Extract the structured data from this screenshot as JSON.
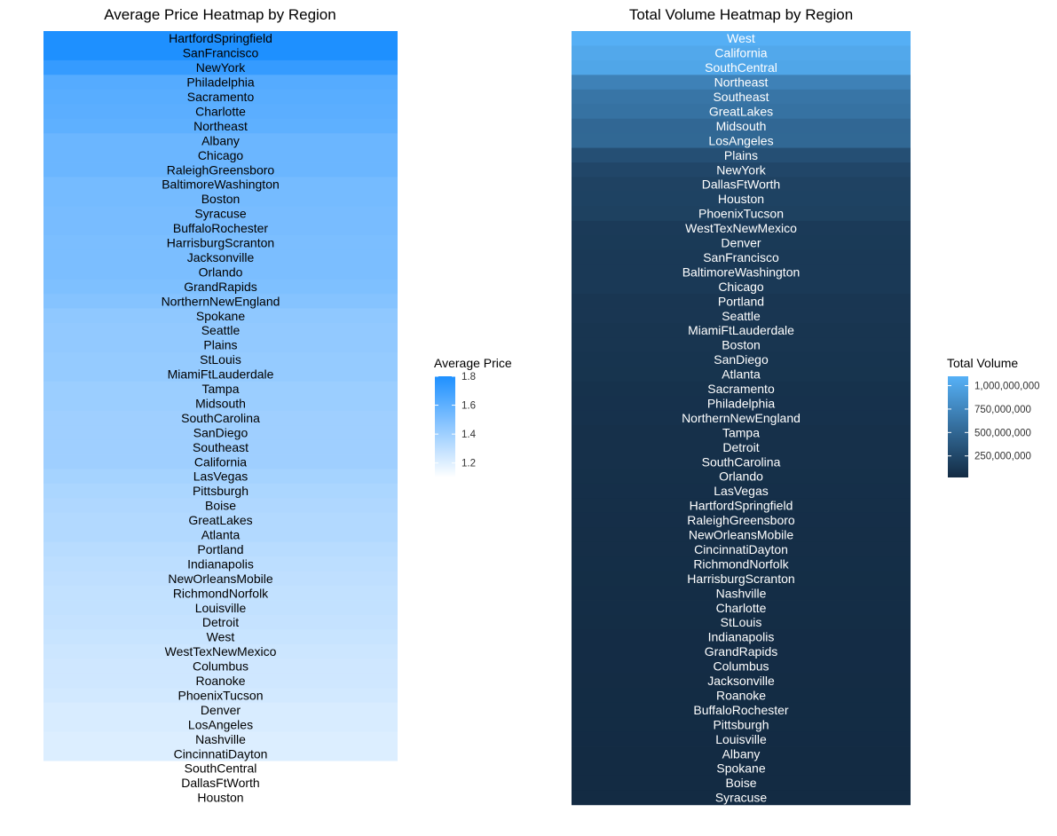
{
  "colors": {
    "price_low": "#ffffff",
    "price_high": "#1e90ff",
    "volume_low": "#132b43",
    "volume_high": "#56b1f7",
    "price_label": "#000000",
    "volume_label": "#ffffff"
  },
  "chart_data": [
    {
      "type": "heatmap",
      "title": "Average Price Heatmap by Region",
      "xlabel": "",
      "ylabel": "",
      "grid": false,
      "legend": {
        "title": "Average Price",
        "position": "right",
        "ticks": [
          1.2,
          1.4,
          1.6,
          1.8
        ],
        "tick_labels": [
          "1.2",
          "1.4",
          "1.6",
          "1.8"
        ],
        "range": [
          1.1,
          1.8
        ]
      },
      "categories": [
        "HartfordSpringfield",
        "SanFrancisco",
        "NewYork",
        "Philadelphia",
        "Sacramento",
        "Charlotte",
        "Northeast",
        "Albany",
        "Chicago",
        "RaleighGreensboro",
        "BaltimoreWashington",
        "Boston",
        "Syracuse",
        "BuffaloRochester",
        "HarrisburgScranton",
        "Jacksonville",
        "Orlando",
        "GrandRapids",
        "NorthernNewEngland",
        "Spokane",
        "Seattle",
        "Plains",
        "StLouis",
        "MiamiFtLauderdale",
        "Tampa",
        "Midsouth",
        "SouthCarolina",
        "SanDiego",
        "Southeast",
        "California",
        "LasVegas",
        "Pittsburgh",
        "Boise",
        "GreatLakes",
        "Atlanta",
        "Portland",
        "Indianapolis",
        "NewOrleansMobile",
        "RichmondNorfolk",
        "Louisville",
        "Detroit",
        "West",
        "WestTexNewMexico",
        "Columbus",
        "Roanoke",
        "PhoenixTucson",
        "Denver",
        "LosAngeles",
        "Nashville",
        "CincinnatiDayton",
        "SouthCentral",
        "DallasFtWorth",
        "Houston"
      ],
      "values": [
        1.82,
        1.8,
        1.73,
        1.63,
        1.62,
        1.61,
        1.6,
        1.56,
        1.56,
        1.56,
        1.53,
        1.53,
        1.52,
        1.52,
        1.51,
        1.51,
        1.51,
        1.5,
        1.48,
        1.45,
        1.44,
        1.44,
        1.43,
        1.43,
        1.41,
        1.41,
        1.4,
        1.4,
        1.4,
        1.4,
        1.38,
        1.36,
        1.35,
        1.34,
        1.34,
        1.32,
        1.31,
        1.3,
        1.29,
        1.29,
        1.28,
        1.27,
        1.26,
        1.25,
        1.25,
        1.24,
        1.22,
        1.22,
        1.21,
        1.21,
        1.1,
        1.09,
        1.05
      ]
    },
    {
      "type": "heatmap",
      "title": "Total Volume Heatmap by Region",
      "xlabel": "",
      "ylabel": "",
      "grid": false,
      "legend": {
        "title": "Total Volume",
        "position": "right",
        "ticks": [
          250000000,
          500000000,
          750000000,
          1000000000
        ],
        "tick_labels": [
          "250,000,000",
          "500,000,000",
          "750,000,000",
          "1,000,000,000"
        ],
        "range": [
          20000000,
          1100000000
        ]
      },
      "categories": [
        "West",
        "California",
        "SouthCentral",
        "Northeast",
        "Southeast",
        "GreatLakes",
        "Midsouth",
        "LosAngeles",
        "Plains",
        "NewYork",
        "DallasFtWorth",
        "Houston",
        "PhoenixTucson",
        "WestTexNewMexico",
        "Denver",
        "SanFrancisco",
        "BaltimoreWashington",
        "Chicago",
        "Portland",
        "Seattle",
        "MiamiFtLauderdale",
        "Boston",
        "SanDiego",
        "Atlanta",
        "Sacramento",
        "Philadelphia",
        "NorthernNewEngland",
        "Tampa",
        "Detroit",
        "SouthCarolina",
        "Orlando",
        "LasVegas",
        "HartfordSpringfield",
        "RaleighGreensboro",
        "NewOrleansMobile",
        "CincinnatiDayton",
        "RichmondNorfolk",
        "HarrisburgScranton",
        "Nashville",
        "Charlotte",
        "StLouis",
        "Indianapolis",
        "GrandRapids",
        "Columbus",
        "Jacksonville",
        "Roanoke",
        "BuffaloRochester",
        "Pittsburgh",
        "Louisville",
        "Albany",
        "Spokane",
        "Boise",
        "Syracuse"
      ],
      "values": [
        1086780000,
        1028980000,
        1011280000,
        713280000,
        615240000,
        589640000,
        505000000,
        508000000,
        311000000,
        240700000,
        208400000,
        203200000,
        195600000,
        144500000,
        138900000,
        135030000,
        134700000,
        133700000,
        110600000,
        109200000,
        97500000,
        97300000,
        91100000,
        88600000,
        75900000,
        71800000,
        71500000,
        60900000,
        63100000,
        60300000,
        58600000,
        54000000,
        50300000,
        48000000,
        45600000,
        44200000,
        43300000,
        40900000,
        35000000,
        35600000,
        33100000,
        32000000,
        30000000,
        29200000,
        28800000,
        25500000,
        25000000,
        24500000,
        24000000,
        16100000,
        15600000,
        14400000,
        10900000
      ]
    }
  ]
}
